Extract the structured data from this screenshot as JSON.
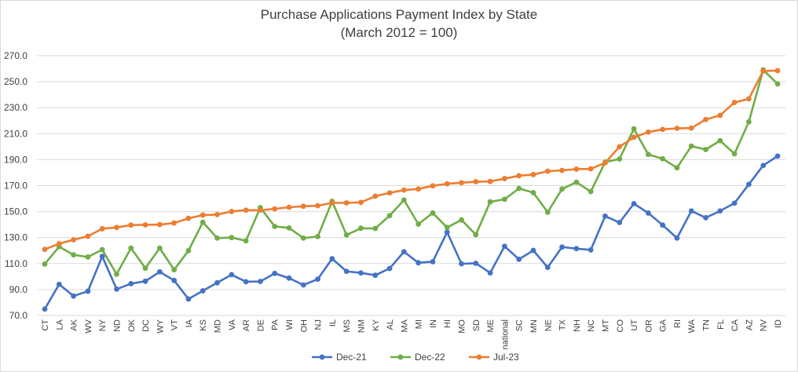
{
  "chart_data": {
    "type": "line",
    "title": "Purchase Applications Payment Index by State",
    "subtitle": "(March 2012 = 100)",
    "xlabel": "",
    "ylabel": "",
    "ylim": [
      70,
      270
    ],
    "yticks": [
      "70.0",
      "90.0",
      "110.0",
      "130.0",
      "150.0",
      "170.0",
      "190.0",
      "210.0",
      "230.0",
      "250.0",
      "270.0"
    ],
    "grid": true,
    "legend_position": "bottom",
    "categories": [
      "CT",
      "LA",
      "AK",
      "WV",
      "NY",
      "ND",
      "OK",
      "DC",
      "WY",
      "VT",
      "IA",
      "KS",
      "MD",
      "VA",
      "AR",
      "DE",
      "PA",
      "WI",
      "OH",
      "NJ",
      "IL",
      "MS",
      "NM",
      "KY",
      "AL",
      "MA",
      "MI",
      "IN",
      "HI",
      "MO",
      "SD",
      "ME",
      "national",
      "SC",
      "MN",
      "NE",
      "TX",
      "NH",
      "NC",
      "MT",
      "CO",
      "UT",
      "OR",
      "GA",
      "RI",
      "WA",
      "TN",
      "FL",
      "CA",
      "AZ",
      "NV",
      "ID"
    ],
    "series": [
      {
        "name": "Dec-21",
        "color": "#4472C4",
        "values": [
          75.0,
          94.0,
          85.0,
          88.7,
          115.5,
          90.3,
          94.5,
          96.4,
          103.6,
          97.0,
          82.7,
          89.0,
          95.2,
          101.4,
          96.0,
          96.2,
          102.4,
          98.8,
          93.5,
          98.0,
          113.7,
          104.0,
          102.8,
          101.0,
          106.2,
          119.1,
          110.6,
          111.4,
          134.2,
          109.8,
          110.2,
          102.8,
          123.3,
          113.3,
          120.1,
          107.0,
          122.7,
          121.5,
          120.5,
          146.5,
          141.6,
          156.1,
          148.9,
          139.6,
          129.6,
          150.5,
          145.3,
          150.5,
          156.5,
          171.0,
          185.5,
          192.7
        ]
      },
      {
        "name": "Dec-22",
        "color": "#70AD47",
        "values": [
          109.6,
          123.0,
          116.7,
          115.0,
          120.7,
          101.8,
          121.9,
          106.4,
          121.9,
          105.2,
          119.9,
          141.8,
          129.6,
          130.0,
          127.5,
          153.1,
          138.6,
          137.4,
          129.6,
          130.8,
          157.9,
          132.0,
          137.2,
          137.0,
          146.9,
          158.9,
          140.4,
          148.9,
          137.8,
          143.6,
          132.2,
          157.5,
          159.5,
          167.8,
          164.6,
          149.5,
          167.4,
          172.6,
          165.4,
          188.1,
          190.5,
          213.7,
          194.0,
          190.7,
          183.7,
          200.4,
          197.8,
          204.6,
          194.5,
          219.1,
          259.1,
          248.3
        ]
      },
      {
        "name": "Jul-23",
        "color": "#ED7D31",
        "values": [
          120.9,
          125.3,
          128.3,
          131.0,
          136.8,
          137.8,
          139.6,
          139.8,
          140.0,
          141.2,
          144.8,
          147.3,
          147.7,
          150.1,
          151.1,
          151.1,
          152.1,
          153.3,
          154.1,
          154.5,
          156.7,
          156.7,
          157.1,
          161.8,
          164.4,
          166.6,
          167.4,
          169.8,
          171.4,
          172.2,
          173.0,
          173.2,
          175.4,
          177.6,
          178.5,
          181.1,
          181.7,
          182.7,
          182.9,
          187.5,
          200.0,
          207.2,
          211.2,
          213.3,
          214.1,
          214.3,
          220.9,
          224.1,
          234.0,
          236.8,
          258.3,
          258.5
        ]
      }
    ]
  }
}
